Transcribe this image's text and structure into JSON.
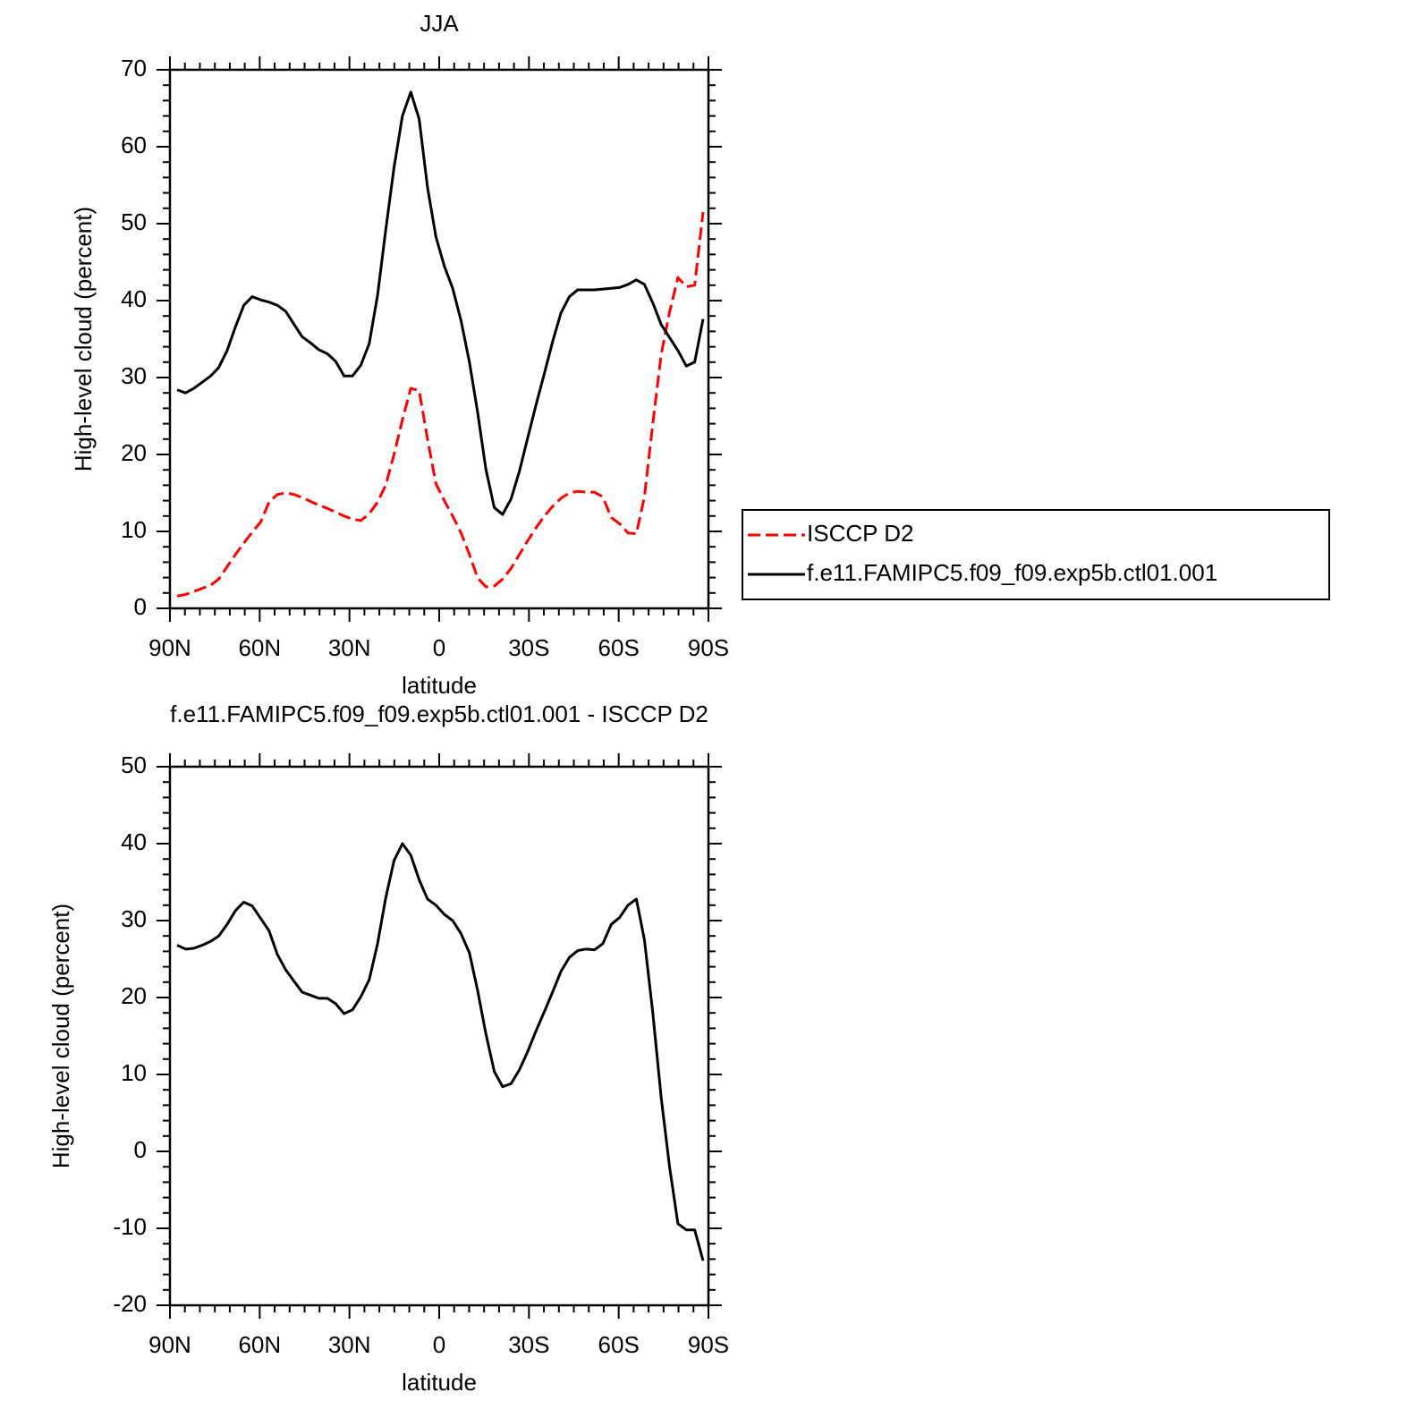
{
  "chart_data": [
    {
      "type": "line",
      "title": "JJA",
      "ylabel": "High-level cloud (percent)",
      "xlabel": "latitude",
      "x": [
        87.6,
        84.8,
        82.0,
        79.2,
        76.4,
        73.7,
        70.9,
        68.1,
        65.3,
        62.5,
        59.7,
        56.9,
        54.1,
        51.3,
        48.5,
        45.8,
        43.0,
        40.2,
        37.4,
        34.6,
        31.8,
        29.0,
        26.2,
        23.4,
        20.6,
        17.9,
        15.1,
        12.3,
        9.5,
        6.7,
        3.9,
        1.1,
        -1.7,
        -4.5,
        -7.3,
        -10.1,
        -12.8,
        -15.6,
        -18.4,
        -21.2,
        -24.0,
        -26.8,
        -29.6,
        -32.4,
        -35.2,
        -38.0,
        -40.7,
        -43.5,
        -46.3,
        -49.1,
        -51.9,
        -54.7,
        -57.5,
        -60.3,
        -63.1,
        -65.9,
        -68.6,
        -71.4,
        -74.2,
        -77.0,
        -79.8,
        -82.6,
        -85.4,
        -88.2
      ],
      "xlim": [
        90,
        -90
      ],
      "xticks": [
        {
          "value": 90,
          "label": "90N"
        },
        {
          "value": 60,
          "label": "60N"
        },
        {
          "value": 30,
          "label": "30N"
        },
        0,
        {
          "value": -30,
          "label": "30S"
        },
        {
          "value": -60,
          "label": "60S"
        },
        {
          "value": -90,
          "label": "90S"
        }
      ],
      "ylim": [
        0,
        70
      ],
      "yticks": [
        0,
        10,
        20,
        30,
        40,
        50,
        60,
        70
      ],
      "legend": "right",
      "series": [
        {
          "name": "ISCCP D2",
          "color": "#ff0000",
          "line_style": "dashed",
          "values": [
            1.6,
            1.8,
            2.2,
            2.6,
            3.0,
            3.8,
            5.4,
            7.0,
            8.5,
            9.9,
            11.2,
            13.8,
            14.8,
            15.0,
            14.8,
            14.4,
            13.9,
            13.4,
            13.0,
            12.5,
            12.0,
            11.6,
            11.4,
            12.3,
            13.8,
            16.0,
            20.0,
            24.5,
            28.6,
            28.3,
            22.0,
            16.2,
            14.0,
            12.0,
            9.8,
            7.0,
            4.0,
            2.8,
            2.9,
            3.8,
            5.2,
            7.0,
            8.8,
            10.5,
            12.0,
            13.3,
            14.3,
            15.0,
            15.2,
            15.1,
            15.1,
            14.5,
            11.8,
            11.0,
            9.8,
            9.7,
            14.5,
            24.0,
            33.0,
            38.5,
            43.0,
            41.8,
            42.0,
            51.5
          ]
        },
        {
          "name": "f.e11.FAMIPC5.f09_f09.exp5b.ctl01.001",
          "color": "#000000",
          "line_style": "solid",
          "values": [
            28.4,
            28.0,
            28.6,
            29.4,
            30.2,
            31.3,
            33.5,
            36.6,
            39.4,
            40.5,
            40.1,
            39.8,
            39.4,
            38.6,
            36.9,
            35.3,
            34.5,
            33.6,
            33.1,
            32.1,
            30.2,
            30.2,
            31.6,
            34.4,
            40.7,
            49.1,
            57.3,
            64.0,
            67.1,
            63.6,
            54.7,
            48.3,
            44.5,
            41.6,
            37.4,
            32.0,
            25.6,
            18.1,
            13.1,
            12.2,
            14.2,
            17.8,
            22.2,
            26.5,
            30.6,
            34.8,
            38.4,
            40.5,
            41.4,
            41.4,
            41.4,
            41.5,
            41.6,
            41.7,
            42.1,
            42.7,
            42.1,
            39.7,
            36.9,
            35.2,
            33.5,
            31.5,
            32.0,
            37.6
          ]
        }
      ]
    },
    {
      "type": "line",
      "title": "f.e11.FAMIPC5.f09_f09.exp5b.ctl01.001 - ISCCP D2",
      "ylabel": "High-level cloud (percent)",
      "xlabel": "latitude",
      "x": [
        87.6,
        84.8,
        82.0,
        79.2,
        76.4,
        73.7,
        70.9,
        68.1,
        65.3,
        62.5,
        59.7,
        56.9,
        54.1,
        51.3,
        48.5,
        45.8,
        43.0,
        40.2,
        37.4,
        34.6,
        31.8,
        29.0,
        26.2,
        23.4,
        20.6,
        17.9,
        15.1,
        12.3,
        9.5,
        6.7,
        3.9,
        1.1,
        -1.7,
        -4.5,
        -7.3,
        -10.1,
        -12.8,
        -15.6,
        -18.4,
        -21.2,
        -24.0,
        -26.8,
        -29.6,
        -32.4,
        -35.2,
        -38.0,
        -40.7,
        -43.5,
        -46.3,
        -49.1,
        -51.9,
        -54.7,
        -57.5,
        -60.3,
        -63.1,
        -65.9,
        -68.6,
        -71.4,
        -74.2,
        -77.0,
        -79.8,
        -82.6,
        -85.4,
        -88.2
      ],
      "xlim": [
        90,
        -90
      ],
      "xticks": [
        {
          "value": 90,
          "label": "90N"
        },
        {
          "value": 60,
          "label": "60N"
        },
        {
          "value": 30,
          "label": "30N"
        },
        0,
        {
          "value": -30,
          "label": "30S"
        },
        {
          "value": -60,
          "label": "60S"
        },
        {
          "value": -90,
          "label": "90S"
        }
      ],
      "ylim": [
        -20,
        50
      ],
      "yticks": [
        -20,
        -10,
        0,
        10,
        20,
        30,
        40,
        50
      ],
      "series": [
        {
          "color": "#000000",
          "line_style": "solid",
          "values": [
            26.8,
            26.3,
            26.4,
            26.8,
            27.3,
            28.0,
            29.5,
            31.3,
            32.4,
            31.9,
            30.3,
            28.7,
            25.6,
            23.6,
            22.1,
            20.7,
            20.3,
            19.9,
            19.9,
            19.2,
            17.9,
            18.4,
            20.1,
            22.3,
            27.0,
            32.9,
            37.8,
            40.0,
            38.5,
            35.3,
            32.8,
            32.0,
            30.8,
            30.0,
            28.3,
            25.8,
            21.0,
            15.3,
            10.4,
            8.4,
            8.8,
            10.6,
            13.0,
            15.7,
            18.2,
            20.8,
            23.4,
            25.2,
            26.1,
            26.3,
            26.2,
            27.0,
            29.5,
            30.4,
            32.0,
            32.8,
            27.5,
            18.0,
            7.0,
            -2.0,
            -9.4,
            -10.2,
            -10.2,
            -14.2
          ]
        }
      ]
    }
  ]
}
